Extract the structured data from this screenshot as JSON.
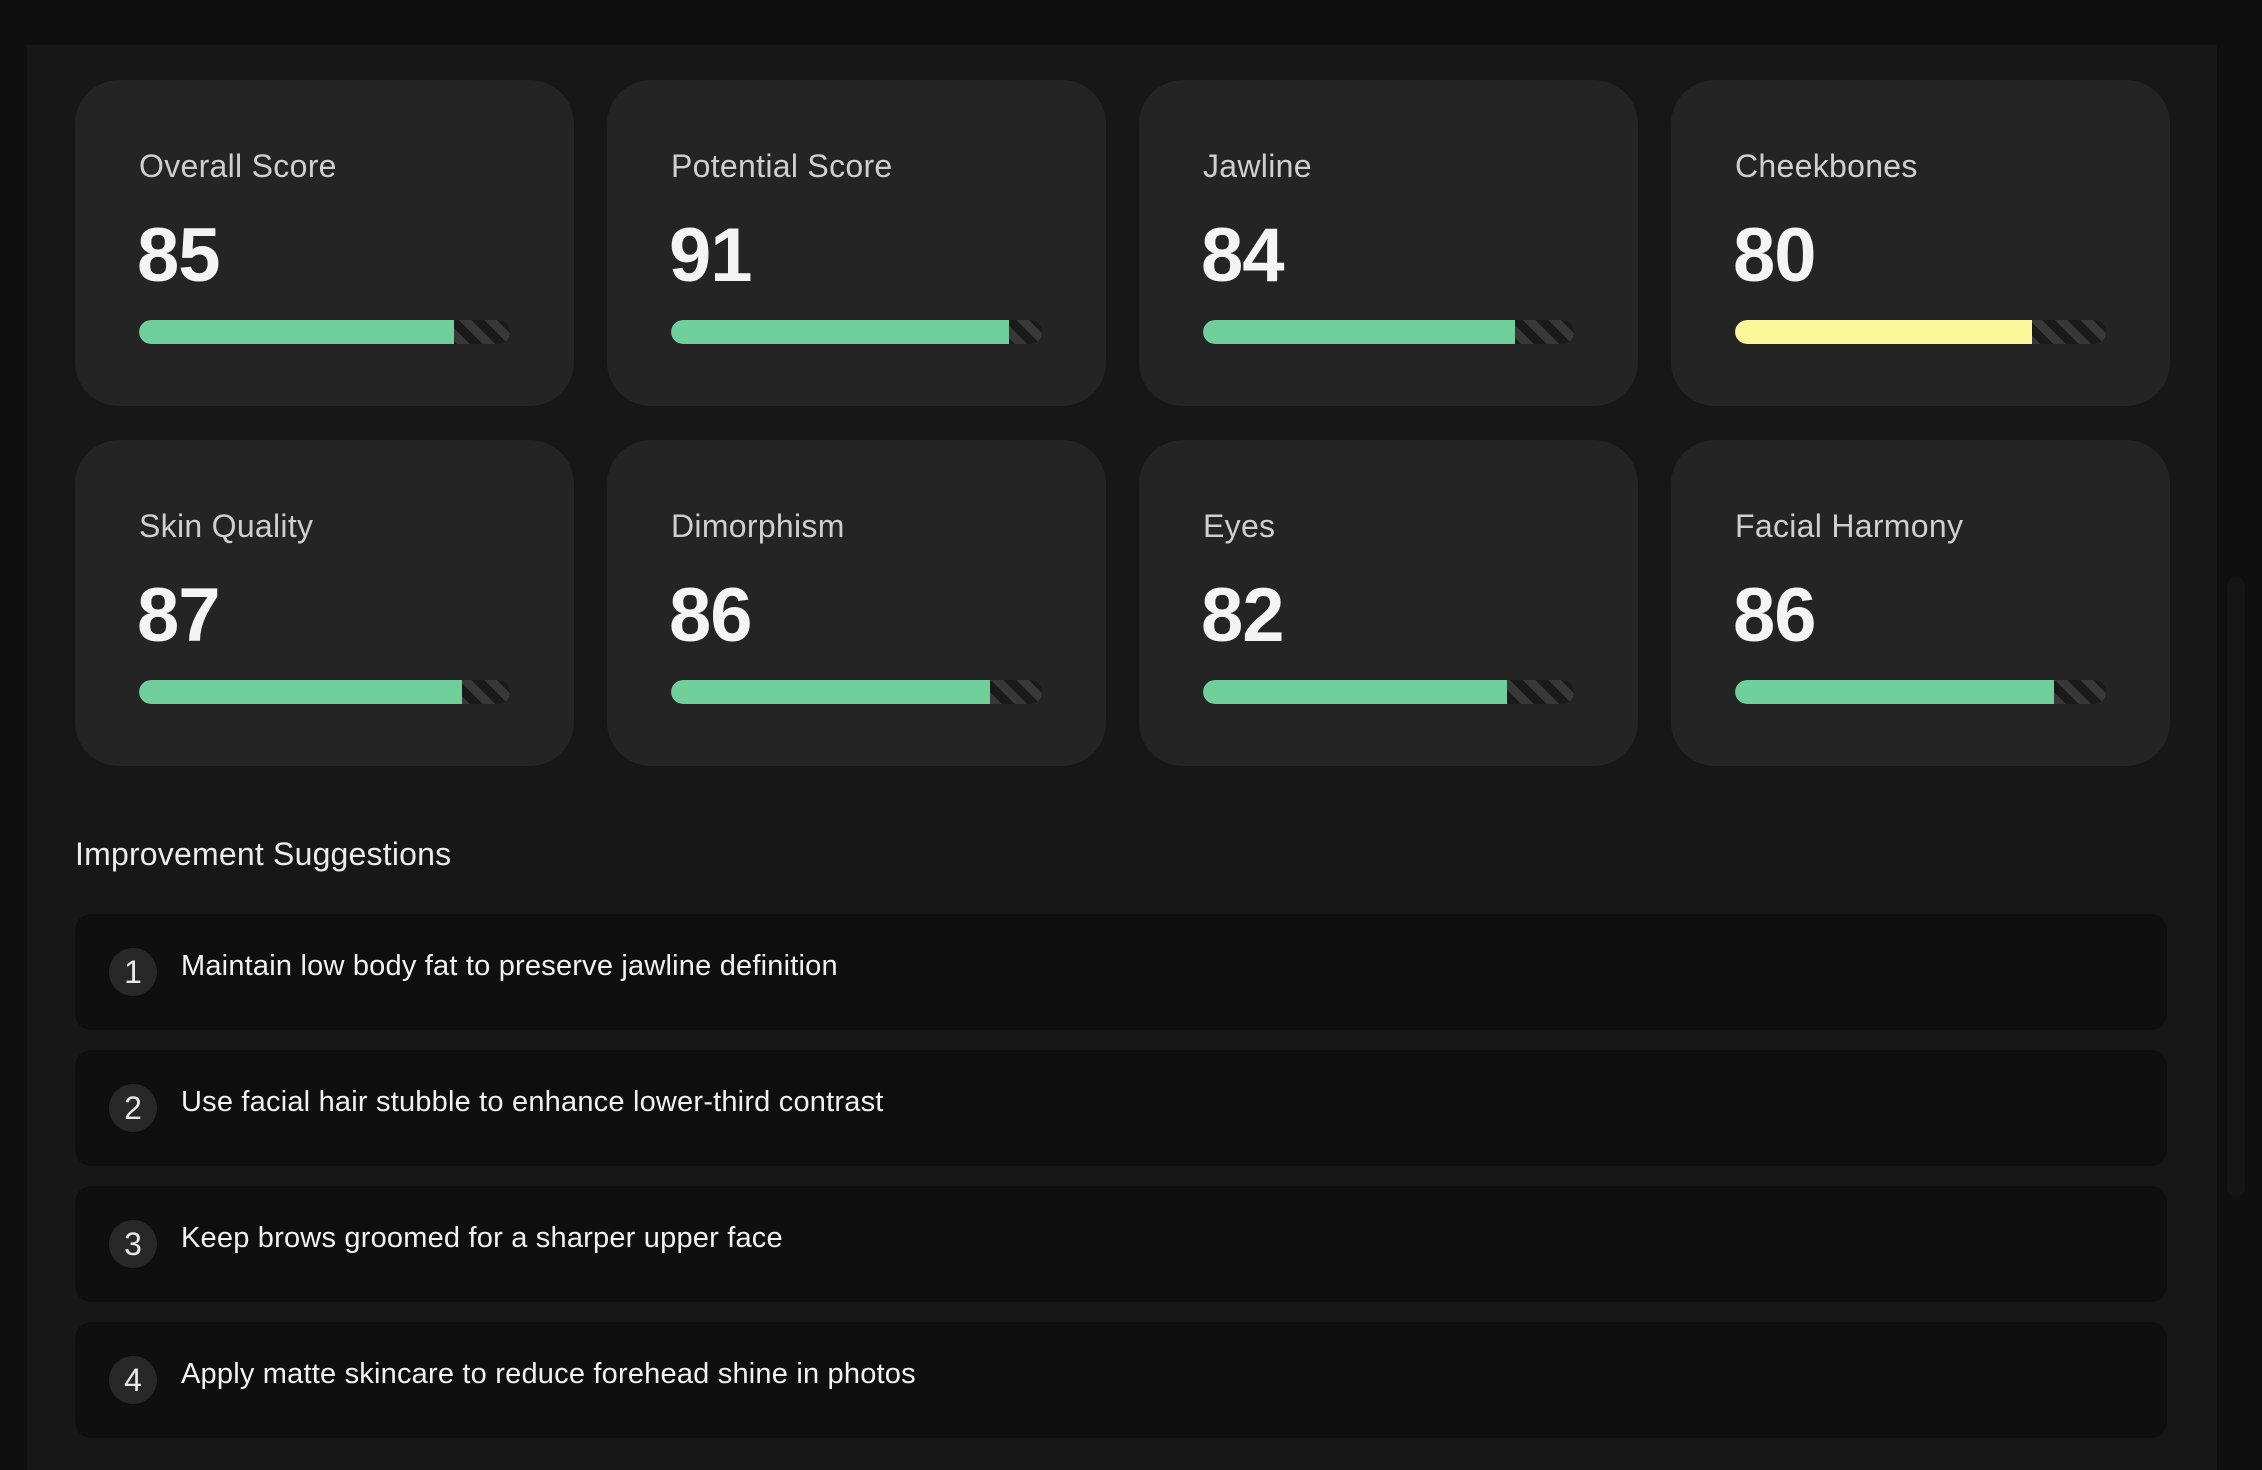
{
  "colors": {
    "green": "#6ecf9a",
    "yellow": "#fbf79a"
  },
  "scores": [
    {
      "label": "Overall Score",
      "value": "85",
      "progress": 0.85,
      "color": "#6ecf9a"
    },
    {
      "label": "Potential Score",
      "value": "91",
      "progress": 0.91,
      "color": "#6ecf9a"
    },
    {
      "label": "Jawline",
      "value": "84",
      "progress": 0.84,
      "color": "#6ecf9a"
    },
    {
      "label": "Cheekbones",
      "value": "80",
      "progress": 0.8,
      "color": "#fbf79a"
    },
    {
      "label": "Skin Quality",
      "value": "87",
      "progress": 0.87,
      "color": "#6ecf9a"
    },
    {
      "label": "Dimorphism",
      "value": "86",
      "progress": 0.86,
      "color": "#6ecf9a"
    },
    {
      "label": "Eyes",
      "value": "82",
      "progress": 0.82,
      "color": "#6ecf9a"
    },
    {
      "label": "Facial Harmony",
      "value": "86",
      "progress": 0.86,
      "color": "#6ecf9a"
    }
  ],
  "improvements": {
    "title": "Improvement Suggestions",
    "items": [
      {
        "number": "1",
        "text": "Maintain low body fat to preserve jawline definition"
      },
      {
        "number": "2",
        "text": "Use facial hair stubble to enhance lower-third contrast"
      },
      {
        "number": "3",
        "text": "Keep brows groomed for a sharper upper face"
      },
      {
        "number": "4",
        "text": "Apply matte skincare to reduce forehead shine in photos"
      }
    ]
  }
}
